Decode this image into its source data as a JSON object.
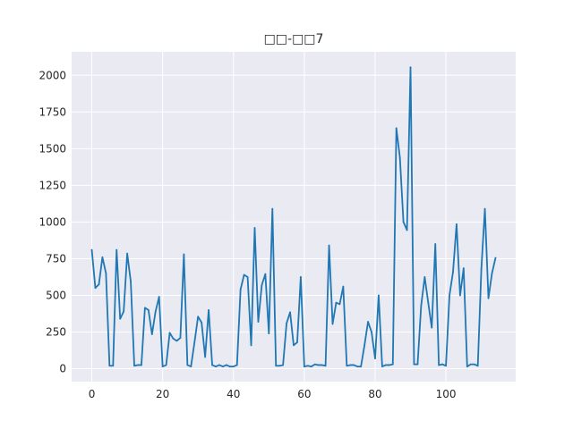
{
  "chart_data": {
    "type": "line",
    "title": "□□-□□7",
    "xlabel": "",
    "ylabel": "",
    "xlim": [
      -5.7,
      119.7
    ],
    "ylim": [
      -88,
      2160
    ],
    "x_ticks": [
      0,
      20,
      40,
      60,
      80,
      100
    ],
    "y_ticks": [
      0,
      250,
      500,
      750,
      1000,
      1250,
      1500,
      1750,
      2000
    ],
    "grid": true,
    "background": "#eaeaf2",
    "line_color": "#1f77b4",
    "series": [
      {
        "x": [
          0,
          1,
          2,
          3,
          4,
          5,
          6,
          7,
          8,
          9,
          10,
          11,
          12,
          13,
          14,
          15,
          16,
          17,
          18,
          19,
          20,
          21,
          22,
          23,
          24,
          25,
          26,
          27,
          28,
          29,
          30,
          31,
          32,
          33,
          34,
          35,
          36,
          37,
          38,
          39,
          40,
          41,
          42,
          43,
          44,
          45,
          46,
          47,
          48,
          49,
          50,
          51,
          52,
          53,
          54,
          55,
          56,
          57,
          58,
          59,
          60,
          61,
          62,
          63,
          64,
          65,
          66,
          67,
          68,
          69,
          70,
          71,
          72,
          73,
          74,
          75,
          76,
          77,
          78,
          79,
          80,
          81,
          82,
          83,
          84,
          85,
          86,
          87,
          88,
          89,
          90,
          91,
          92,
          93,
          94,
          95,
          96,
          97,
          98,
          99,
          100,
          101,
          102,
          103,
          104,
          105,
          106,
          107,
          108,
          109,
          110,
          111,
          112,
          113,
          114
        ],
        "values": [
          810,
          550,
          575,
          760,
          650,
          20,
          20,
          810,
          340,
          390,
          785,
          595,
          20,
          25,
          25,
          415,
          400,
          235,
          390,
          490,
          15,
          25,
          245,
          205,
          190,
          210,
          780,
          25,
          15,
          180,
          355,
          315,
          80,
          400,
          25,
          15,
          25,
          15,
          25,
          15,
          15,
          25,
          540,
          640,
          625,
          160,
          960,
          320,
          570,
          645,
          240,
          1090,
          20,
          20,
          25,
          310,
          385,
          160,
          180,
          625,
          15,
          20,
          15,
          30,
          25,
          25,
          20,
          840,
          305,
          450,
          440,
          560,
          20,
          25,
          25,
          15,
          15,
          160,
          320,
          250,
          70,
          500,
          15,
          25,
          25,
          30,
          1640,
          1440,
          1000,
          945,
          2055,
          30,
          30,
          430,
          625,
          450,
          280,
          850,
          25,
          30,
          20,
          500,
          660,
          985,
          500,
          685,
          15,
          30,
          30,
          20,
          680,
          1090,
          480,
          650,
          755
        ]
      }
    ]
  }
}
